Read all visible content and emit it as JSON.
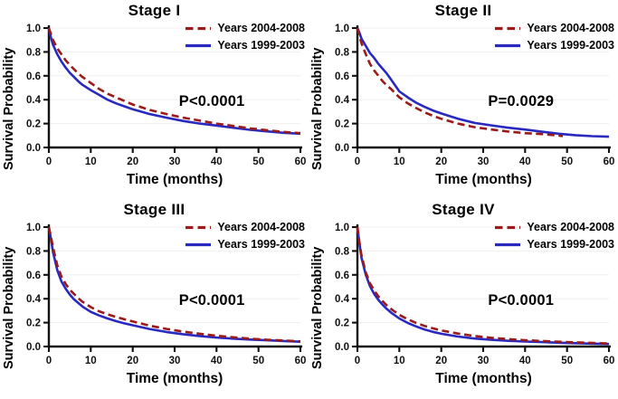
{
  "figure": {
    "background": "#ffffff",
    "axis_color": "#111111",
    "grid_color": "#f0efec",
    "text_color": "#000000"
  },
  "chart_data": [
    {
      "type": "line",
      "title": "Stage I",
      "xlabel": "Time (months)",
      "ylabel": "Survival Probability",
      "xlim": [
        0,
        60
      ],
      "ylim": [
        0.0,
        1.0
      ],
      "xticks": [
        0,
        10,
        20,
        30,
        40,
        50,
        60
      ],
      "yticks": [
        0.0,
        0.2,
        0.4,
        0.6,
        0.8,
        1.0
      ],
      "grid": "faint-horizontal",
      "legend_position": "top-right",
      "p_value": "P<0.0001",
      "series": [
        {
          "name": "Years 2004-2008",
          "style": "dashed",
          "color": "#9b1b1b",
          "x": [
            0,
            0.5,
            1,
            2,
            3,
            4,
            5,
            6,
            7,
            8,
            10,
            12,
            14,
            16,
            18,
            20,
            24,
            28,
            32,
            36,
            40,
            44,
            48,
            52,
            56,
            60
          ],
          "y": [
            1.0,
            0.95,
            0.9,
            0.83,
            0.78,
            0.73,
            0.69,
            0.655,
            0.62,
            0.59,
            0.54,
            0.49,
            0.45,
            0.42,
            0.39,
            0.36,
            0.315,
            0.28,
            0.25,
            0.225,
            0.2,
            0.18,
            0.16,
            0.145,
            0.13,
            0.12
          ]
        },
        {
          "name": "Years 1999-2003",
          "style": "solid",
          "color": "#2929c0",
          "x": [
            0,
            0.5,
            1,
            2,
            3,
            4,
            5,
            6,
            7,
            8,
            10,
            12,
            14,
            16,
            18,
            20,
            24,
            28,
            32,
            36,
            40,
            44,
            48,
            52,
            56,
            60
          ],
          "y": [
            1.0,
            0.92,
            0.86,
            0.78,
            0.72,
            0.67,
            0.625,
            0.59,
            0.555,
            0.525,
            0.48,
            0.44,
            0.4,
            0.37,
            0.345,
            0.32,
            0.28,
            0.25,
            0.222,
            0.2,
            0.183,
            0.165,
            0.148,
            0.135,
            0.123,
            0.115
          ]
        }
      ]
    },
    {
      "type": "line",
      "title": "Stage II",
      "xlabel": "Time (months)",
      "ylabel": "Survival Probability",
      "xlim": [
        0,
        60
      ],
      "ylim": [
        0.0,
        1.0
      ],
      "xticks": [
        0,
        10,
        20,
        30,
        40,
        50,
        60
      ],
      "yticks": [
        0.0,
        0.2,
        0.4,
        0.6,
        0.8,
        1.0
      ],
      "grid": "faint-horizontal",
      "legend_position": "top-right",
      "p_value": "P=0.0029",
      "series": [
        {
          "name": "Years 2004-2008",
          "style": "dashed",
          "color": "#9b1b1b",
          "x": [
            0,
            0.5,
            1,
            2,
            3,
            4,
            5,
            6,
            7,
            8,
            10,
            12,
            14,
            16,
            18,
            20,
            24,
            28,
            32,
            36,
            40,
            44,
            48,
            49
          ],
          "y": [
            1.0,
            0.93,
            0.87,
            0.78,
            0.7,
            0.645,
            0.6,
            0.555,
            0.52,
            0.49,
            0.42,
            0.37,
            0.33,
            0.295,
            0.265,
            0.24,
            0.2,
            0.17,
            0.15,
            0.133,
            0.12,
            0.112,
            0.1,
            0.095
          ]
        },
        {
          "name": "Years 1999-2003",
          "style": "solid",
          "color": "#2929c0",
          "x": [
            0,
            0.5,
            1,
            2,
            3,
            4,
            5,
            6,
            7,
            8,
            10,
            12,
            14,
            16,
            18,
            20,
            24,
            28,
            32,
            36,
            40,
            44,
            48,
            52,
            56,
            60
          ],
          "y": [
            1.0,
            0.96,
            0.91,
            0.85,
            0.79,
            0.75,
            0.7,
            0.66,
            0.62,
            0.57,
            0.47,
            0.42,
            0.375,
            0.34,
            0.31,
            0.285,
            0.24,
            0.205,
            0.185,
            0.165,
            0.15,
            0.132,
            0.115,
            0.103,
            0.095,
            0.09
          ]
        }
      ]
    },
    {
      "type": "line",
      "title": "Stage III",
      "xlabel": "Time (months)",
      "ylabel": "Survival Probability",
      "xlim": [
        0,
        60
      ],
      "ylim": [
        0.0,
        1.0
      ],
      "xticks": [
        0,
        10,
        20,
        30,
        40,
        50,
        60
      ],
      "yticks": [
        0.0,
        0.2,
        0.4,
        0.6,
        0.8,
        1.0
      ],
      "grid": "faint-horizontal",
      "legend_position": "top-right",
      "p_value": "P<0.0001",
      "series": [
        {
          "name": "Years 2004-2008",
          "style": "dashed",
          "color": "#9b1b1b",
          "x": [
            0,
            0.5,
            1,
            2,
            3,
            4,
            5,
            6,
            7,
            8,
            10,
            12,
            14,
            16,
            18,
            20,
            24,
            28,
            32,
            36,
            40,
            44,
            48,
            52,
            56,
            60
          ],
          "y": [
            1.0,
            0.92,
            0.83,
            0.68,
            0.585,
            0.525,
            0.475,
            0.44,
            0.405,
            0.375,
            0.33,
            0.295,
            0.27,
            0.248,
            0.228,
            0.21,
            0.175,
            0.148,
            0.125,
            0.107,
            0.09,
            0.077,
            0.066,
            0.057,
            0.05,
            0.043
          ]
        },
        {
          "name": "Years 1999-2003",
          "style": "solid",
          "color": "#2929c0",
          "x": [
            0,
            0.5,
            1,
            2,
            3,
            4,
            5,
            6,
            7,
            8,
            10,
            12,
            14,
            16,
            18,
            20,
            24,
            28,
            32,
            36,
            40,
            44,
            48,
            52,
            56,
            60
          ],
          "y": [
            1.0,
            0.9,
            0.79,
            0.64,
            0.545,
            0.485,
            0.435,
            0.395,
            0.365,
            0.335,
            0.29,
            0.26,
            0.235,
            0.213,
            0.194,
            0.178,
            0.147,
            0.122,
            0.103,
            0.088,
            0.075,
            0.066,
            0.058,
            0.052,
            0.046,
            0.04
          ]
        }
      ]
    },
    {
      "type": "line",
      "title": "Stage IV",
      "xlabel": "Time (months)",
      "ylabel": "Survival Probability",
      "xlim": [
        0,
        60
      ],
      "ylim": [
        0.0,
        1.0
      ],
      "xticks": [
        0,
        10,
        20,
        30,
        40,
        50,
        60
      ],
      "yticks": [
        0.0,
        0.2,
        0.4,
        0.6,
        0.8,
        1.0
      ],
      "grid": "faint-horizontal",
      "legend_position": "top-right",
      "p_value": "P<0.0001",
      "series": [
        {
          "name": "Years 2004-2008",
          "style": "dashed",
          "color": "#9b1b1b",
          "x": [
            0,
            0.5,
            1,
            2,
            3,
            4,
            5,
            6,
            7,
            8,
            10,
            12,
            14,
            16,
            18,
            20,
            24,
            28,
            32,
            36,
            40,
            44,
            48,
            52,
            56,
            60
          ],
          "y": [
            1.0,
            0.87,
            0.76,
            0.62,
            0.53,
            0.47,
            0.42,
            0.38,
            0.345,
            0.315,
            0.265,
            0.228,
            0.198,
            0.173,
            0.152,
            0.135,
            0.108,
            0.088,
            0.073,
            0.062,
            0.053,
            0.046,
            0.04,
            0.035,
            0.03,
            0.026
          ]
        },
        {
          "name": "Years 1999-2003",
          "style": "solid",
          "color": "#2929c0",
          "x": [
            0,
            0.5,
            1,
            2,
            3,
            4,
            5,
            6,
            7,
            8,
            10,
            12,
            14,
            16,
            18,
            20,
            24,
            28,
            32,
            36,
            40,
            44,
            48,
            52,
            56,
            60
          ],
          "y": [
            1.0,
            0.86,
            0.74,
            0.6,
            0.505,
            0.44,
            0.39,
            0.35,
            0.315,
            0.285,
            0.235,
            0.198,
            0.168,
            0.143,
            0.123,
            0.107,
            0.083,
            0.067,
            0.056,
            0.048,
            0.042,
            0.037,
            0.032,
            0.028,
            0.024,
            0.021
          ]
        }
      ]
    }
  ]
}
